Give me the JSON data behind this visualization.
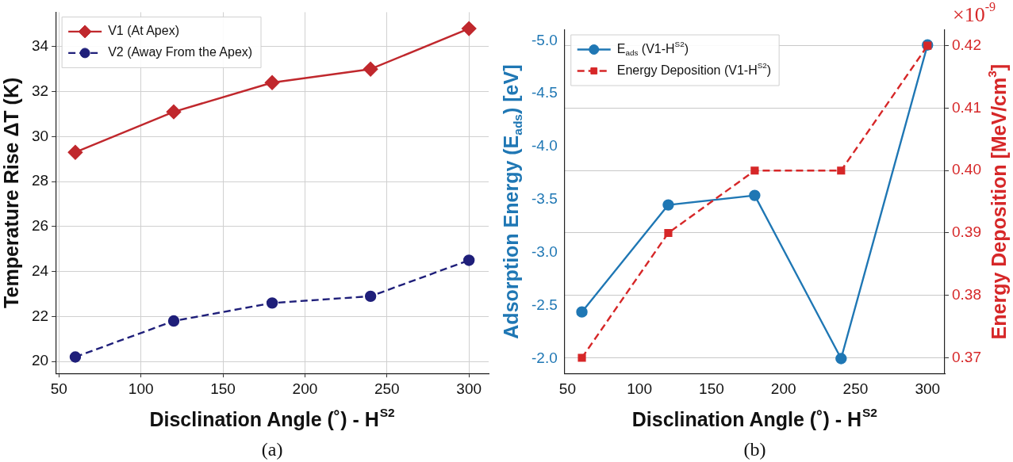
{
  "chart_data": [
    {
      "type": "line",
      "xlabel": "Disclination Angle (˚) - H$^{S2}$",
      "ylabel": "Temperature Rise ΔT (K)",
      "x": [
        60,
        120,
        180,
        240,
        300
      ],
      "series": [
        {
          "name": "V1 (At Apex)",
          "color": "#c0282d",
          "values": [
            29.3,
            31.1,
            32.4,
            33.0,
            34.8
          ],
          "marker": "diamond",
          "line_style": "solid"
        },
        {
          "name": "V2 (Away From the Apex)",
          "color": "#1f1f7a",
          "values": [
            20.2,
            21.8,
            22.6,
            22.9,
            24.5
          ],
          "marker": "circle",
          "line_style": "dashed"
        }
      ],
      "xlim": [
        48,
        312
      ],
      "xticks": [
        50,
        100,
        150,
        200,
        250,
        300
      ],
      "ylim": [
        19.47,
        35.53
      ],
      "yticks": [
        20,
        22,
        24,
        26,
        28,
        30,
        32,
        34
      ],
      "grid": true,
      "legend": "top left",
      "annotations": [
        "(a)"
      ]
    },
    {
      "type": "line",
      "xlabel": "Disclination Angle (˚) - H$^{S2}$",
      "ylabel": "Adsorption Energy (E$_{ads}$) [eV]",
      "y2label": "Energy Deposition [MeV/cm$^{3}$]",
      "x": [
        60,
        120,
        180,
        240,
        300
      ],
      "series": [
        {
          "name": "E$_{ads}$ (V1-H$^{S2}$)",
          "color": "#1f77b4",
          "values": [
            -2.44,
            -3.45,
            -3.54,
            -2.0,
            -4.96
          ],
          "marker": "circle",
          "line_style": "solid"
        },
        {
          "name": "Energy Deposition (V1-H$^{S2}$)",
          "color": "#d62728",
          "values": [
            0.37,
            0.39,
            0.4,
            0.4,
            0.42
          ],
          "marker": "square",
          "line_style": "dashed",
          "axis": "y2"
        }
      ],
      "xlim": [
        48,
        312
      ],
      "xticks": [
        50,
        100,
        150,
        200,
        250,
        300
      ],
      "ylim": [
        -1.86,
        -5.1
      ],
      "yticks": [
        {
          "value": -2.0,
          "label": "-2.0"
        },
        -2.5,
        {
          "value": -3.0,
          "label": "-3.0"
        },
        -3.5,
        {
          "value": -4.0,
          "label": "-4.0"
        },
        -4.5,
        {
          "value": -5.0,
          "label": "-5.0"
        }
      ],
      "y2lim": [
        0.3675,
        0.4225
      ],
      "y2ticks": [
        0.37,
        0.38,
        0.39,
        {
          "value": 0.4,
          "label": "0.40"
        },
        0.41,
        0.42
      ],
      "grid": "y2",
      "legend": "top left",
      "annotations": [
        "×10$^{-9}$",
        "(b)"
      ]
    }
  ]
}
